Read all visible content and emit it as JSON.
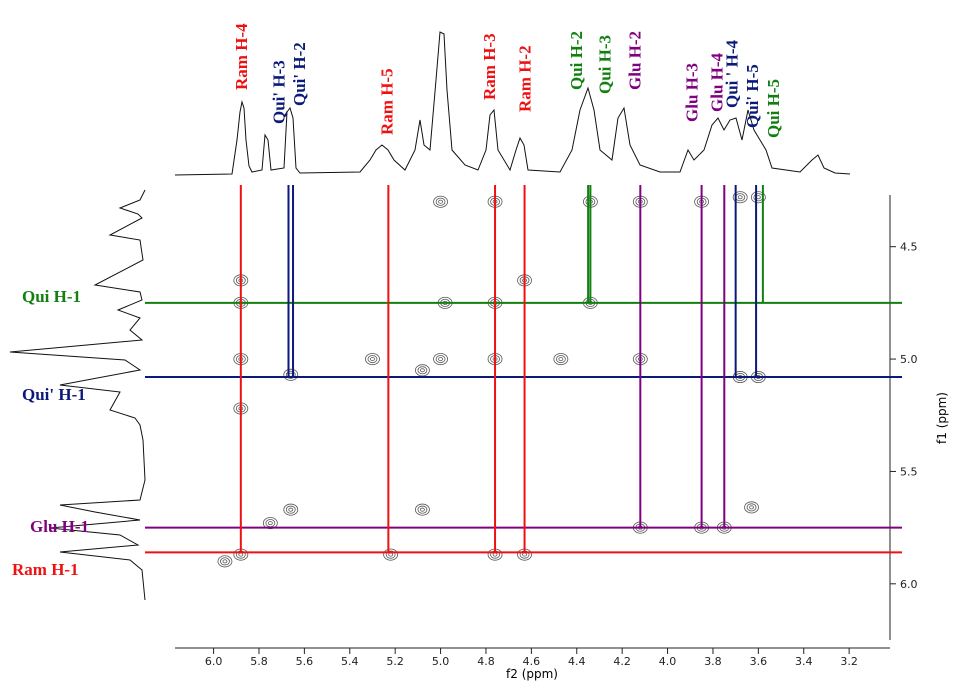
{
  "chart_data": {
    "type": "nmr2d",
    "xlabel": "f2 (ppm)",
    "ylabel": "f1 (ppm)",
    "xlim": [
      6.17,
      3.02
    ],
    "ylim": [
      4.27,
      6.25
    ],
    "xticks": [
      {
        "value": 6.0,
        "label": "6.0"
      },
      {
        "value": 5.8,
        "label": "5.8"
      },
      {
        "value": 5.6,
        "label": "5.6"
      },
      {
        "value": 5.4,
        "label": "5.4"
      },
      {
        "value": 5.2,
        "label": "5.2"
      },
      {
        "value": 5.0,
        "label": "5.0"
      },
      {
        "value": 4.8,
        "label": "4.8"
      },
      {
        "value": 4.6,
        "label": "4.6"
      },
      {
        "value": 4.4,
        "label": "4.4"
      },
      {
        "value": 4.2,
        "label": "4.2"
      },
      {
        "value": 4.0,
        "label": "4.0"
      },
      {
        "value": 3.8,
        "label": "3.8"
      },
      {
        "value": 3.6,
        "label": "3.6"
      },
      {
        "value": 3.4,
        "label": "3.4"
      },
      {
        "value": 3.2,
        "label": "3.2"
      }
    ],
    "yticks": [
      {
        "value": 4.5,
        "label": "4.5"
      },
      {
        "value": 5.0,
        "label": "5.0"
      },
      {
        "value": 5.5,
        "label": "5.5"
      },
      {
        "value": 6.0,
        "label": "6.0"
      }
    ],
    "f1_assignments": [
      {
        "label": "Qui H-1",
        "ppm": 4.75,
        "color": "#118011"
      },
      {
        "label": "Qui' H-1",
        "ppm": 5.08,
        "color": "#0b1a7a"
      },
      {
        "label": "Glu H-1",
        "ppm": 5.75,
        "color": "#800080"
      },
      {
        "label": "Ram H-1",
        "ppm": 5.86,
        "color": "#ee1111"
      }
    ],
    "f2_assignments": [
      {
        "label": "Ram H-4",
        "ppm": 5.88,
        "color": "#ee1111",
        "to": 3
      },
      {
        "label": "Qui' H-3",
        "ppm": 5.67,
        "color": "#0b1a7a",
        "to": 1
      },
      {
        "label": "Qui' H-2",
        "ppm": 5.65,
        "color": "#0b1a7a",
        "to": 1
      },
      {
        "label": "Ram H-5",
        "ppm": 5.23,
        "color": "#ee1111",
        "to": 3
      },
      {
        "label": "Ram H-3",
        "ppm": 4.76,
        "color": "#ee1111",
        "to": 3
      },
      {
        "label": "Ram H-2",
        "ppm": 4.63,
        "color": "#ee1111",
        "to": 3
      },
      {
        "label": "Qui H-2",
        "ppm": 4.35,
        "color": "#118011",
        "to": 0
      },
      {
        "label": "Qui H-3",
        "ppm": 4.34,
        "color": "#118011",
        "to": 0
      },
      {
        "label": "Glu H-2",
        "ppm": 4.12,
        "color": "#800080",
        "to": 2
      },
      {
        "label": "Glu H-3",
        "ppm": 3.85,
        "color": "#800080",
        "to": 2
      },
      {
        "label": "Glu H-4",
        "ppm": 3.75,
        "color": "#800080",
        "to": 2
      },
      {
        "label": "Qui ' H-4",
        "ppm": 3.7,
        "color": "#0b1a7a",
        "to": 1
      },
      {
        "label": "Qui' H-5",
        "ppm": 3.61,
        "color": "#0b1a7a",
        "to": 1
      },
      {
        "label": "Qui H-5",
        "ppm": 3.58,
        "color": "#118011",
        "to": 0
      }
    ],
    "peaks": {
      "x": [
        5.88,
        5.88,
        5.88,
        5.88,
        5.88,
        5.66,
        5.66,
        5.22,
        5.0,
        5.0,
        4.98,
        4.76,
        4.76,
        4.76,
        4.76,
        4.63,
        4.63,
        4.34,
        4.34,
        4.12,
        4.12,
        4.12,
        3.85,
        3.85,
        3.75,
        3.68,
        3.6,
        3.68,
        3.6,
        3.63,
        5.08,
        5.08,
        5.3,
        4.47,
        5.75,
        5.95
      ],
      "y": [
        4.65,
        4.75,
        5.0,
        5.22,
        5.87,
        5.07,
        5.67,
        5.87,
        4.3,
        5.0,
        4.75,
        4.3,
        4.75,
        5.0,
        5.87,
        4.65,
        5.87,
        4.3,
        4.75,
        4.3,
        5.0,
        5.75,
        4.3,
        5.75,
        5.75,
        4.28,
        4.28,
        5.08,
        5.08,
        5.66,
        5.67,
        5.05,
        5.0,
        5.0,
        5.73,
        5.9
      ]
    }
  }
}
